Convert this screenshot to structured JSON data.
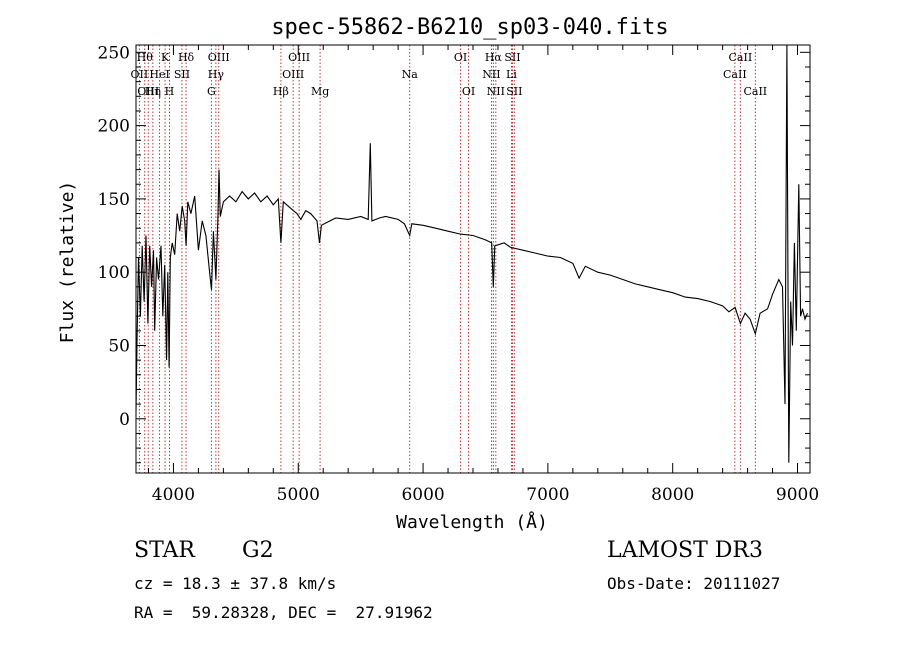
{
  "chart_data": {
    "type": "line",
    "title": "spec-55862-B6210_sp03-040.fits",
    "xlabel": "Wavelength (Å)",
    "ylabel": "Flux (relative)",
    "xlim": [
      3700,
      9100
    ],
    "ylim": [
      -37,
      255
    ],
    "x_ticks": [
      4000,
      5000,
      6000,
      7000,
      8000,
      9000
    ],
    "y_ticks": [
      0,
      50,
      100,
      150,
      200,
      250
    ],
    "series": [
      {
        "name": "spectrum",
        "points": [
          [
            3700,
            5
          ],
          [
            3710,
            60
          ],
          [
            3720,
            110
          ],
          [
            3735,
            70
          ],
          [
            3750,
            118
          ],
          [
            3765,
            80
          ],
          [
            3780,
            125
          ],
          [
            3795,
            65
          ],
          [
            3810,
            118
          ],
          [
            3825,
            90
          ],
          [
            3840,
            115
          ],
          [
            3850,
            60
          ],
          [
            3865,
            110
          ],
          [
            3880,
            95
          ],
          [
            3900,
            118
          ],
          [
            3915,
            70
          ],
          [
            3930,
            105
          ],
          [
            3945,
            40
          ],
          [
            3955,
            100
          ],
          [
            3965,
            35
          ],
          [
            3975,
            110
          ],
          [
            3990,
            120
          ],
          [
            4010,
            112
          ],
          [
            4030,
            140
          ],
          [
            4050,
            128
          ],
          [
            4070,
            145
          ],
          [
            4090,
            135
          ],
          [
            4101,
            118
          ],
          [
            4115,
            148
          ],
          [
            4140,
            140
          ],
          [
            4170,
            152
          ],
          [
            4200,
            115
          ],
          [
            4230,
            135
          ],
          [
            4260,
            125
          ],
          [
            4290,
            100
          ],
          [
            4305,
            88
          ],
          [
            4320,
            128
          ],
          [
            4340,
            95
          ],
          [
            4355,
            135
          ],
          [
            4365,
            170
          ],
          [
            4375,
            138
          ],
          [
            4400,
            148
          ],
          [
            4450,
            152
          ],
          [
            4500,
            148
          ],
          [
            4550,
            155
          ],
          [
            4600,
            150
          ],
          [
            4650,
            154
          ],
          [
            4700,
            148
          ],
          [
            4750,
            152
          ],
          [
            4800,
            146
          ],
          [
            4840,
            150
          ],
          [
            4861,
            120
          ],
          [
            4880,
            148
          ],
          [
            4920,
            145
          ],
          [
            4960,
            142
          ],
          [
            4990,
            140
          ],
          [
            5020,
            136
          ],
          [
            5060,
            142
          ],
          [
            5100,
            140
          ],
          [
            5150,
            135
          ],
          [
            5170,
            120
          ],
          [
            5185,
            132
          ],
          [
            5230,
            134
          ],
          [
            5300,
            137
          ],
          [
            5400,
            136
          ],
          [
            5500,
            138
          ],
          [
            5560,
            136
          ],
          [
            5577,
            188
          ],
          [
            5590,
            135
          ],
          [
            5650,
            137
          ],
          [
            5700,
            138
          ],
          [
            5800,
            136
          ],
          [
            5850,
            133
          ],
          [
            5893,
            125
          ],
          [
            5910,
            133
          ],
          [
            6000,
            132
          ],
          [
            6100,
            130
          ],
          [
            6200,
            128
          ],
          [
            6300,
            126
          ],
          [
            6400,
            125
          ],
          [
            6500,
            122
          ],
          [
            6550,
            120
          ],
          [
            6563,
            90
          ],
          [
            6575,
            118
          ],
          [
            6650,
            120
          ],
          [
            6700,
            117
          ],
          [
            6800,
            115
          ],
          [
            6900,
            113
          ],
          [
            7000,
            111
          ],
          [
            7100,
            110
          ],
          [
            7200,
            106
          ],
          [
            7250,
            96
          ],
          [
            7300,
            104
          ],
          [
            7400,
            100
          ],
          [
            7500,
            98
          ],
          [
            7600,
            95
          ],
          [
            7700,
            92
          ],
          [
            7800,
            90
          ],
          [
            7900,
            88
          ],
          [
            8000,
            86
          ],
          [
            8100,
            83
          ],
          [
            8200,
            82
          ],
          [
            8300,
            80
          ],
          [
            8400,
            77
          ],
          [
            8450,
            73
          ],
          [
            8500,
            76
          ],
          [
            8542,
            65
          ],
          [
            8580,
            72
          ],
          [
            8620,
            68
          ],
          [
            8662,
            58
          ],
          [
            8700,
            72
          ],
          [
            8760,
            75
          ],
          [
            8800,
            85
          ],
          [
            8850,
            95
          ],
          [
            8880,
            90
          ],
          [
            8900,
            10
          ],
          [
            8915,
            255
          ],
          [
            8930,
            -30
          ],
          [
            8945,
            80
          ],
          [
            8960,
            50
          ],
          [
            8975,
            120
          ],
          [
            8990,
            60
          ],
          [
            9010,
            160
          ],
          [
            9025,
            70
          ],
          [
            9040,
            75
          ],
          [
            9060,
            68
          ],
          [
            9080,
            72
          ]
        ]
      }
    ],
    "line_markers": [
      {
        "wave": 3727,
        "label": "OII",
        "row": 2
      },
      {
        "wave": 3770,
        "label": "Hθ",
        "row": 1
      },
      {
        "wave": 3798,
        "label": "OIII",
        "row": 3
      },
      {
        "wave": 3835,
        "label": "Hη",
        "row": 3
      },
      {
        "wave": 3889,
        "label": "HeI",
        "row": 2
      },
      {
        "wave": 3933,
        "label": "K",
        "row": 1
      },
      {
        "wave": 3968,
        "label": "H",
        "row": 3
      },
      {
        "wave": 4068,
        "label": "SII",
        "row": 2
      },
      {
        "wave": 4101,
        "label": "Hδ",
        "row": 1
      },
      {
        "wave": 4304,
        "label": "G",
        "row": 3
      },
      {
        "wave": 4340,
        "label": "Hγ",
        "row": 2
      },
      {
        "wave": 4363,
        "label": "OIII",
        "row": 1
      },
      {
        "wave": 4861,
        "label": "Hβ",
        "row": 3
      },
      {
        "wave": 4959,
        "label": "OIII",
        "row": 2
      },
      {
        "wave": 5007,
        "label": "OIII",
        "row": 1
      },
      {
        "wave": 5175,
        "label": "Mg",
        "row": 3
      },
      {
        "wave": 5893,
        "label": "Na",
        "row": 2
      },
      {
        "wave": 6300,
        "label": "OI",
        "row": 1
      },
      {
        "wave": 6364,
        "label": "OI",
        "row": 3
      },
      {
        "wave": 6548,
        "label": "NII",
        "row": 2
      },
      {
        "wave": 6563,
        "label": "Hα",
        "row": 1
      },
      {
        "wave": 6583,
        "label": "NII",
        "row": 3
      },
      {
        "wave": 6708,
        "label": "Li",
        "row": 2
      },
      {
        "wave": 6716,
        "label": "SII",
        "row": 1
      },
      {
        "wave": 6731,
        "label": "SII",
        "row": 3
      },
      {
        "wave": 8498,
        "label": "CaII",
        "row": 2
      },
      {
        "wave": 8542,
        "label": "CaII",
        "row": 1
      },
      {
        "wave": 8662,
        "label": "CaII",
        "row": 3
      }
    ]
  },
  "info": {
    "class": "STAR",
    "subclass": "G2",
    "survey": "LAMOST DR3",
    "cz": "cz = 18.3 ± 37.8 km/s",
    "obs_date": "Obs-Date: 20111027",
    "radec": "RA =  59.28328, DEC =  27.91962"
  },
  "colors": {
    "marker": "#b22222",
    "spectrum": "#000000",
    "axes": "#000000"
  }
}
